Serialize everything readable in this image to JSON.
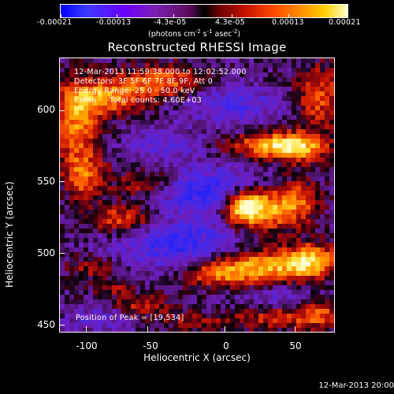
{
  "colorbar": {
    "labels": [
      "-0.00021",
      "-0.00013",
      "-4.3e-05",
      "4.3e-05",
      "0.00013",
      "0.00021"
    ],
    "units": "(photons cm",
    "units_exp1": "-2",
    "units_mid": " s",
    "units_exp2": "-1",
    "units_mid2": " asec",
    "units_exp3": "-2",
    "units_end": ")"
  },
  "title": "Reconstructed RHESSI Image",
  "info": {
    "line1": "12-Mar-2013 11:59:38.000 to 12:02:52.000",
    "line2": "Detectors: 3F 5F 6F 7F 8F 9F, Att 0",
    "line3": "Energy Range: 25.0 - 50.0 keV",
    "line4": "Clean     Total counts: 4.60E+03"
  },
  "peak": "Position of Peak = [19,534]",
  "axes": {
    "xlabel": "Heliocentric X (arcsec)",
    "ylabel": "Heliocentric Y (arcsec)",
    "xticks": [
      "-100",
      "-50",
      "0",
      "50"
    ],
    "yticks": [
      "600",
      "550",
      "500",
      "450"
    ]
  },
  "timestamp": "12-Mar-2013 20:00"
}
